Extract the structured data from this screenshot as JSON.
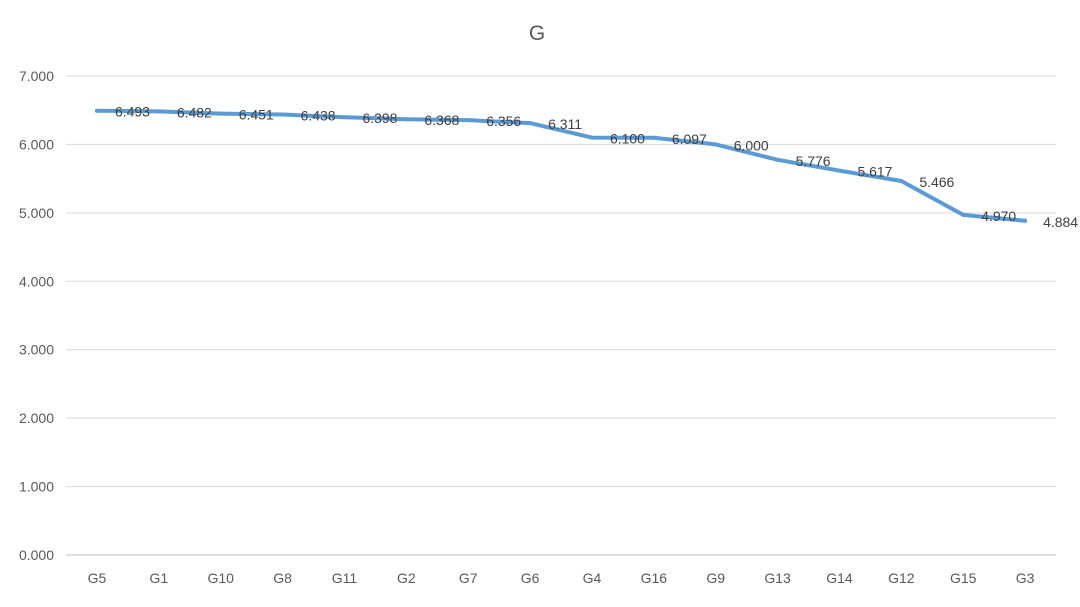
{
  "chart_data": {
    "type": "line",
    "title": "G",
    "xlabel": "",
    "ylabel": "",
    "categories": [
      "G5",
      "G1",
      "G10",
      "G8",
      "G11",
      "G2",
      "G7",
      "G6",
      "G4",
      "G16",
      "G9",
      "G13",
      "G14",
      "G12",
      "G15",
      "G3"
    ],
    "series": [
      {
        "values": [
          6.493,
          6.482,
          6.451,
          6.438,
          6.398,
          6.368,
          6.356,
          6.311,
          6.1,
          6.097,
          6.0,
          5.776,
          5.617,
          5.466,
          4.97,
          4.884
        ],
        "labels": [
          "6.493",
          "6.482",
          "6.451",
          "6.438",
          "6.398",
          "6.368",
          "6.356",
          "6.311",
          "6.100",
          "6.097",
          "6.000",
          "5.776",
          "5.617",
          "5.466",
          "4.970",
          "4.884"
        ]
      }
    ],
    "ylim": [
      0,
      7
    ],
    "yticks": [
      "0.000",
      "1.000",
      "2.000",
      "3.000",
      "4.000",
      "5.000",
      "6.000",
      "7.000"
    ],
    "grid": true,
    "legend": "none",
    "colors": {
      "line": "#5b9bd5",
      "grid": "#d9d9d9",
      "text": "#595959"
    }
  }
}
